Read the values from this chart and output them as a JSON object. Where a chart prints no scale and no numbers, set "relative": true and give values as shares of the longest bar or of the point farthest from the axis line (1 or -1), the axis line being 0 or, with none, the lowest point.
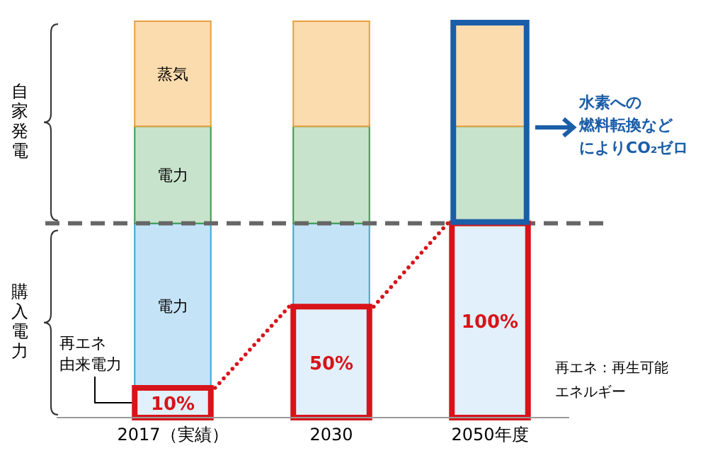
{
  "chart_data": {
    "type": "bar",
    "relative": true,
    "stacked": true,
    "categories": [
      "2017（実績）",
      "2030",
      "2050年度"
    ],
    "series": [
      {
        "name": "再エネ由来電力",
        "color": "#e2f0fb",
        "values": [
          0.075,
          0.28,
          0.49
        ]
      },
      {
        "name": "電力",
        "color": "#c4e3f7",
        "values": [
          0.415,
          0.21,
          0
        ]
      },
      {
        "name": "電力",
        "color": "#c8e3cc",
        "values": [
          0.245,
          0.245,
          0.245
        ]
      },
      {
        "name": "蒸気",
        "color": "#fbdcae",
        "values": [
          0.265,
          0.265,
          0.265
        ]
      }
    ],
    "ref_lines": [
      {
        "axis": "y",
        "value": 0.49,
        "color": "#666666",
        "line_style": "dashed"
      }
    ],
    "annotations": [
      "自家発電",
      "購入電力",
      "水素への燃料転換などによりCO₂ゼロ",
      "再エネ：再生可能エネルギー",
      "10%",
      "50%",
      "100%"
    ]
  }
}
